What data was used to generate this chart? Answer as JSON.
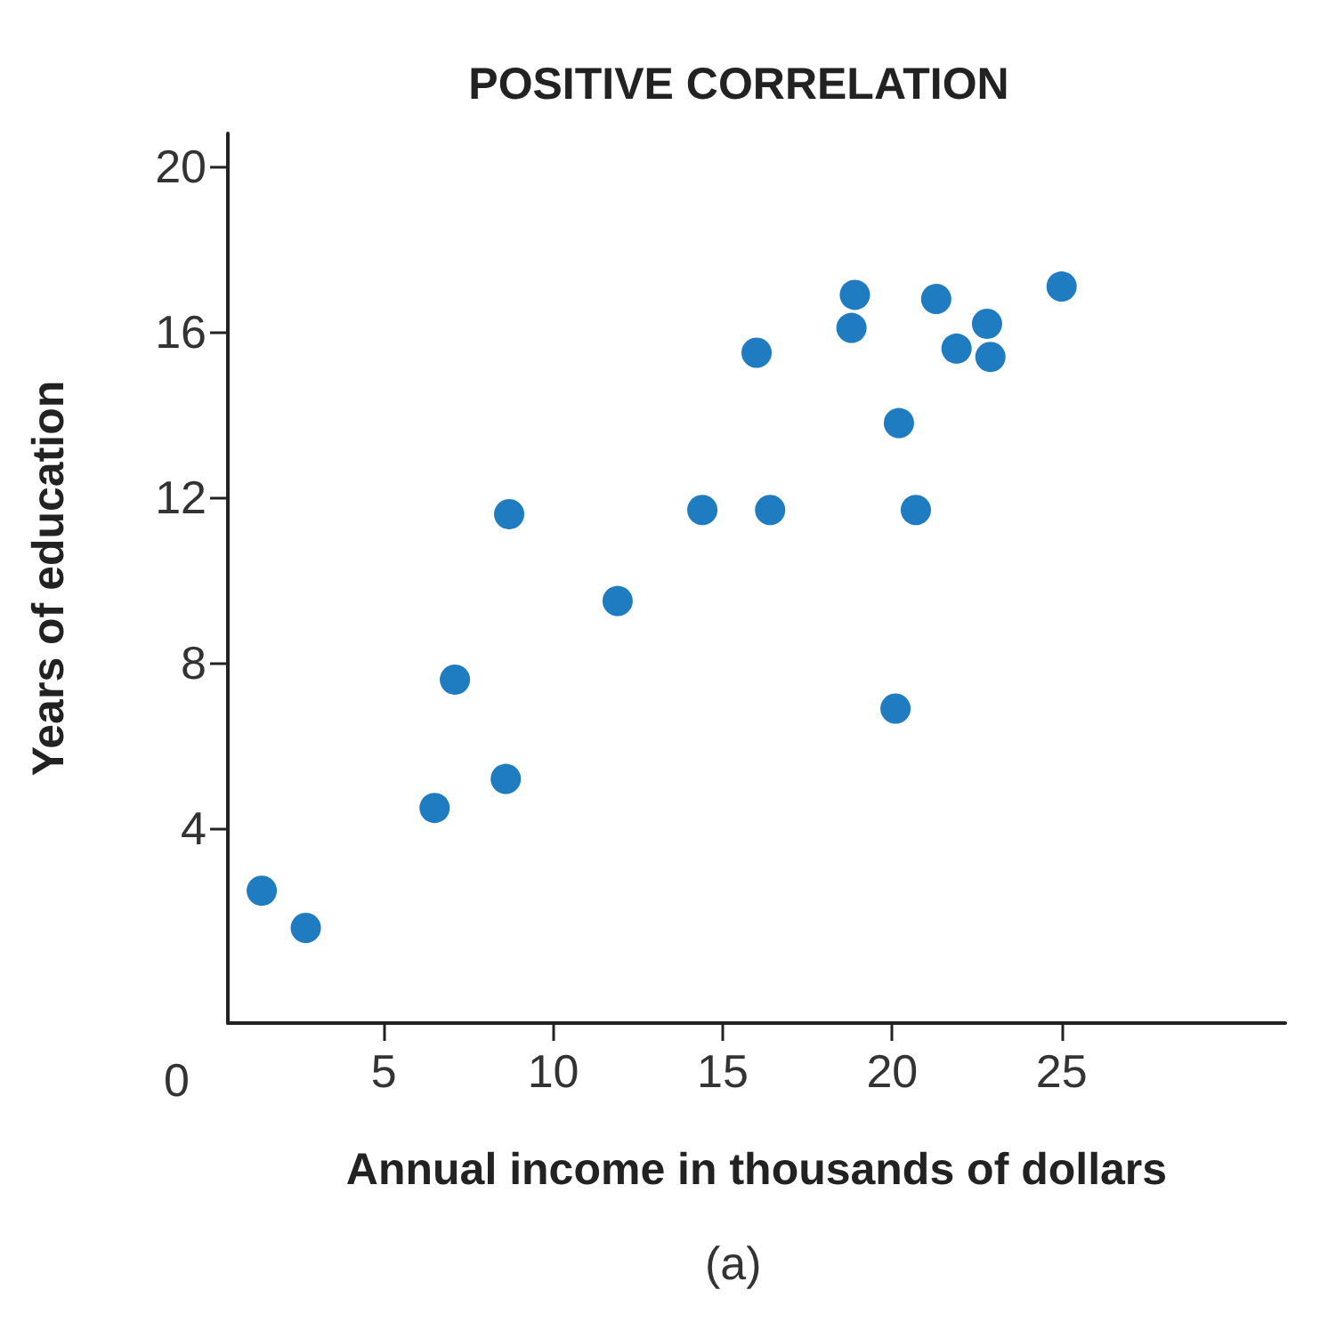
{
  "chart_data": {
    "type": "scatter",
    "title": "POSITIVE CORRELATION",
    "xlabel": "Annual income in thousands of dollars",
    "ylabel": "Years of education",
    "annotations": [
      "0",
      "(a)"
    ],
    "x": [
      1.4,
      2.7,
      6.5,
      7.1,
      8.6,
      8.7,
      11.9,
      14.4,
      16.0,
      16.4,
      18.8,
      18.9,
      20.2,
      20.1,
      20.7,
      21.3,
      21.9,
      22.8,
      22.9,
      25.0
    ],
    "values": [
      2.5,
      1.6,
      4.5,
      7.6,
      5.2,
      11.6,
      9.5,
      11.7,
      15.5,
      11.7,
      16.1,
      16.9,
      13.8,
      6.9,
      11.7,
      16.8,
      15.6,
      16.2,
      15.4,
      17.1
    ],
    "color": "#1f7cc1",
    "marker": "circle",
    "xlim": [
      0.4,
      31.6
    ],
    "ylim": [
      -0.7,
      20.8
    ],
    "xticks": [
      5,
      10,
      15,
      20,
      25
    ],
    "yticks": [
      4,
      8,
      12,
      16,
      20
    ],
    "grid": false
  }
}
